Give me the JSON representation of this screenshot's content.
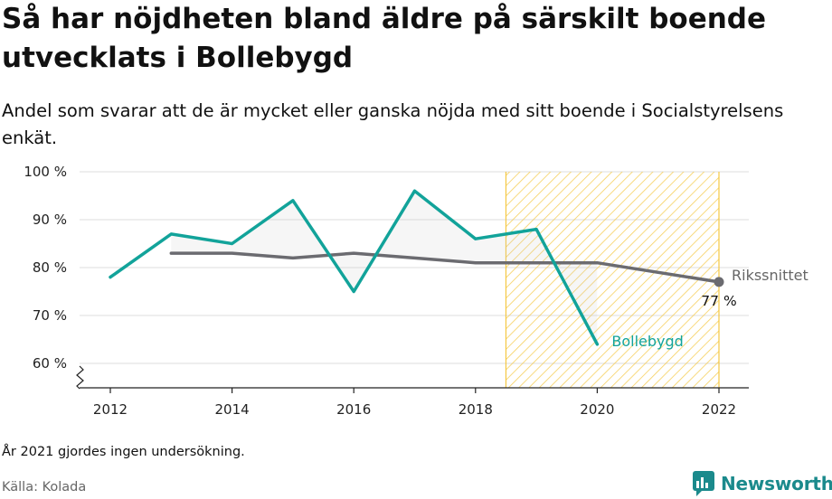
{
  "title": "Så har nöjdheten bland äldre på särskilt boende utvecklats i Bollebygd",
  "subtitle": "Andel som svarar att de är mycket eller ganska nöjda med sitt boende i Socialstyrelsens enkät.",
  "footnote": "År 2021 gjordes ingen undersökning.",
  "source": "Källa: Kolada",
  "brand": {
    "name": "Newsworthy",
    "logo_icon": "chart-bubble-icon",
    "color": "#1b8a8c"
  },
  "chart_data": {
    "type": "line",
    "title": "Så har nöjdheten bland äldre på särskilt boende utvecklats i Bollebygd",
    "xlabel": "",
    "ylabel": "",
    "xlim": [
      2011.5,
      2022.5
    ],
    "ylim": [
      55,
      100
    ],
    "x_ticks": [
      2012,
      2014,
      2016,
      2018,
      2020,
      2022
    ],
    "x_tick_labels": [
      "2012",
      "2014",
      "2016",
      "2018",
      "2020",
      "2022"
    ],
    "y_ticks": [
      60,
      70,
      80,
      90,
      100
    ],
    "y_tick_labels": [
      "60 %",
      "70 %",
      "80 %",
      "90 %",
      "100 %"
    ],
    "axis_break": true,
    "grid": "horizontal",
    "highlight_range": {
      "x": [
        2018.5,
        2022
      ],
      "pattern": "diagonal-hatch",
      "color": "#f5c842"
    },
    "series": [
      {
        "name": "Bollebygd",
        "color": "#12a39a",
        "x": [
          2012,
          2013,
          2014,
          2015,
          2016,
          2017,
          2018,
          2019,
          2020
        ],
        "values": [
          78,
          87,
          85,
          94,
          75,
          96,
          86,
          88,
          64
        ]
      },
      {
        "name": "Rikssnittet",
        "color": "#6b6b70",
        "x": [
          2013,
          2014,
          2015,
          2016,
          2017,
          2018,
          2019,
          2020,
          2022
        ],
        "values": [
          83,
          83,
          82,
          83,
          82,
          81,
          81,
          81,
          77
        ],
        "end_label": "77 %"
      }
    ]
  }
}
